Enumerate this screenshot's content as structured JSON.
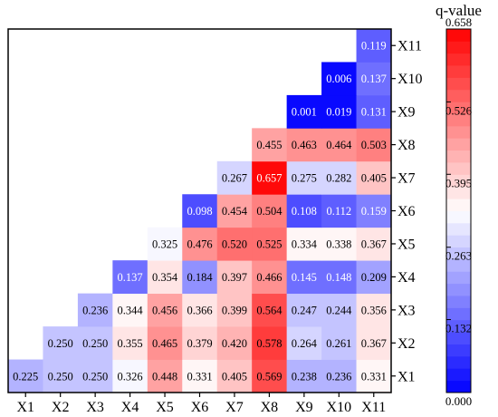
{
  "chart_data": {
    "type": "heatmap",
    "title": "",
    "x_labels": [
      "X1",
      "X2",
      "X3",
      "X4",
      "X5",
      "X6",
      "X7",
      "X8",
      "X9",
      "X10",
      "X11"
    ],
    "y_labels": [
      "X1",
      "X2",
      "X3",
      "X4",
      "X5",
      "X6",
      "X7",
      "X8",
      "X9",
      "X10",
      "X11"
    ],
    "layout": "lower-left triangle; row X1 at bottom, row Xk has k..11 columns filled",
    "rows": [
      {
        "y": "X1",
        "values": [
          "0.225",
          "0.250",
          "0.250",
          "0.326",
          "0.448",
          "0.331",
          "0.405",
          "0.569",
          "0.238",
          "0.236",
          "0.331"
        ]
      },
      {
        "y": "X2",
        "values": [
          "0.250",
          "0.250",
          "0.355",
          "0.465",
          "0.379",
          "0.420",
          "0.578",
          "0.264",
          "0.261",
          "0.367"
        ]
      },
      {
        "y": "X3",
        "values": [
          "0.236",
          "0.344",
          "0.456",
          "0.366",
          "0.399",
          "0.564",
          "0.247",
          "0.244",
          "0.356"
        ]
      },
      {
        "y": "X4",
        "values": [
          "0.137",
          "0.354",
          "0.184",
          "0.397",
          "0.466",
          "0.145",
          "0.148",
          "0.209"
        ]
      },
      {
        "y": "X5",
        "values": [
          "0.325",
          "0.476",
          "0.520",
          "0.525",
          "0.334",
          "0.338",
          "0.367"
        ]
      },
      {
        "y": "X6",
        "values": [
          "0.098",
          "0.454",
          "0.504",
          "0.108",
          "0.112",
          "0.159"
        ]
      },
      {
        "y": "X7",
        "values": [
          "0.267",
          "0.657",
          "0.275",
          "0.282",
          "0.405"
        ]
      },
      {
        "y": "X8",
        "values": [
          "0.455",
          "0.463",
          "0.464",
          "0.503"
        ]
      },
      {
        "y": "X9",
        "values": [
          "0.001",
          "0.019",
          "0.131"
        ]
      },
      {
        "y": "X10",
        "values": [
          "0.006",
          "0.137"
        ]
      },
      {
        "y": "X11",
        "values": [
          "0.119"
        ]
      }
    ],
    "colorbar": {
      "title": "q-value",
      "min": 0.0,
      "max": 0.658,
      "ticks": [
        "0.000",
        "0.132",
        "0.263",
        "0.395",
        "0.526",
        "0.658"
      ],
      "colors": {
        "low": "#0000ff",
        "mid": "#ffffff",
        "high": "#ff0000"
      },
      "steps": 30
    },
    "grid": false,
    "legend": "right"
  }
}
